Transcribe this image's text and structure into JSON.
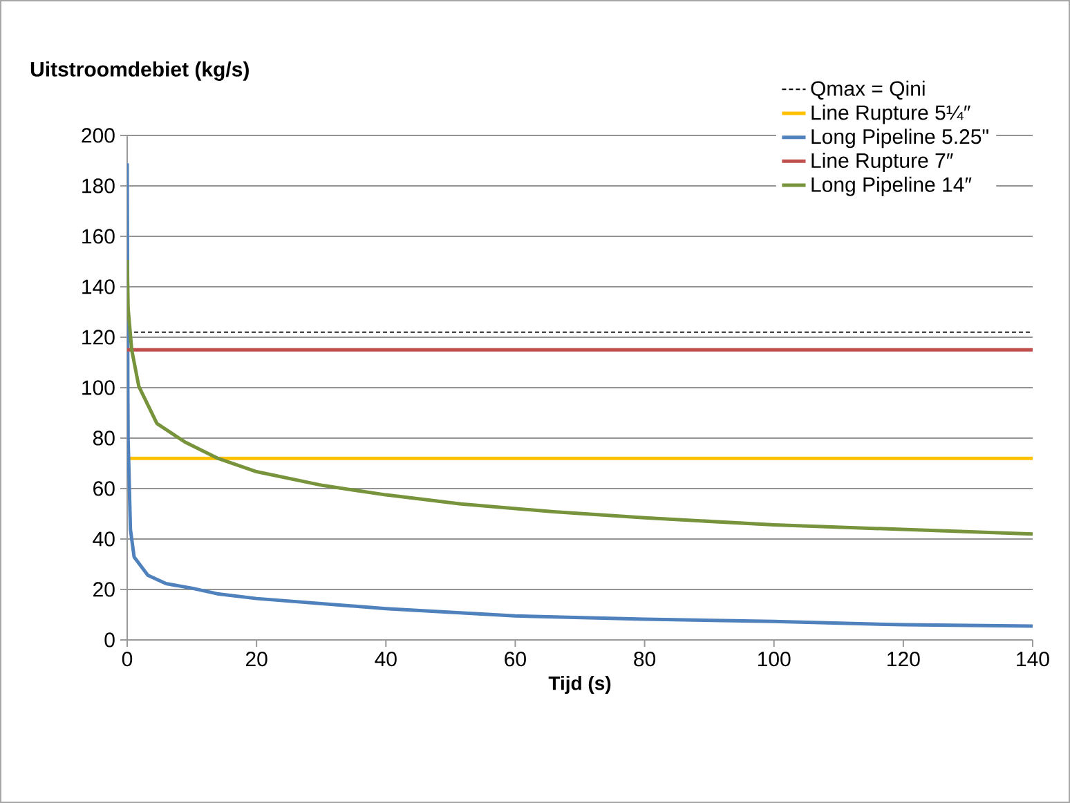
{
  "chart_data": {
    "type": "line",
    "xlabel": "Tijd (s)",
    "ylabel": "Uitstroomdebiet (kg/s)",
    "xlim": [
      0,
      140
    ],
    "xticks": [
      0,
      20,
      40,
      60,
      80,
      100,
      120,
      140
    ],
    "ylim": [
      0,
      200
    ],
    "yticks": [
      0,
      20,
      40,
      60,
      80,
      100,
      120,
      140,
      160,
      180,
      200
    ],
    "grid": "y",
    "legend": "top right",
    "series": [
      {
        "name": "Qmax = Qini",
        "color": "#000000",
        "line_style": "dashed",
        "x": [
          0,
          140
        ],
        "values": [
          122,
          122
        ]
      },
      {
        "name": "Line Rupture 5¼″",
        "color": "#ffc000",
        "x": [
          0,
          140
        ],
        "values": [
          72,
          72
        ]
      },
      {
        "name": "Long Pipeline 5.25\"",
        "color": "#4f81bd",
        "x": [
          0,
          0.07,
          0.1,
          0.14,
          0.5,
          1.07,
          3.2,
          6,
          10,
          13.9,
          20,
          40,
          60,
          80,
          100,
          120,
          140
        ],
        "values": [
          189,
          135,
          98.6,
          80,
          43.8,
          32.9,
          25.6,
          22.3,
          20.5,
          18.3,
          16.4,
          12.4,
          9.5,
          8.2,
          7.3,
          6.0,
          5.5
        ]
      },
      {
        "name": "Line Rupture 7″",
        "color": "#c0504d",
        "x": [
          0,
          140
        ],
        "values": [
          115,
          115
        ]
      },
      {
        "name": "Long Pipeline 14″",
        "color": "#77933c",
        "x": [
          0,
          0.14,
          0.7,
          1.8,
          4.6,
          8.9,
          13.9,
          20,
          30.3,
          40,
          51.6,
          65.9,
          80,
          100,
          120,
          140
        ],
        "values": [
          150.7,
          131.5,
          115,
          100.5,
          85.8,
          78.5,
          72.1,
          66.7,
          61.2,
          57.5,
          53.9,
          50.8,
          48.4,
          45.6,
          43.8,
          42
        ]
      }
    ]
  }
}
